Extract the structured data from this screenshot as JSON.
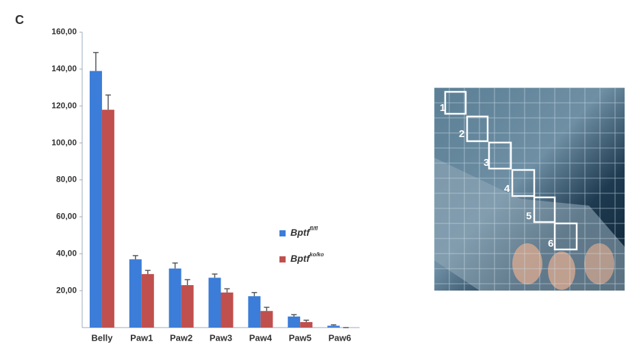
{
  "panel_label": "C",
  "chart_data": {
    "type": "bar",
    "categories": [
      "Belly",
      "Paw1",
      "Paw2",
      "Paw3",
      "Paw4",
      "Paw5",
      "Paw6"
    ],
    "series": [
      {
        "name": "Bptf",
        "superscript": "fl/fl",
        "color": "#3b7dd8",
        "values": [
          139,
          37,
          32,
          27,
          17,
          6,
          1
        ],
        "errors": [
          10,
          2,
          3,
          2,
          2,
          1,
          0.5
        ]
      },
      {
        "name": "Bptf",
        "superscript": "ko/ko",
        "color": "#c0504d",
        "values": [
          118,
          29,
          23,
          19,
          9,
          3,
          0
        ],
        "errors": [
          8,
          2,
          3,
          2,
          2,
          1,
          0
        ]
      }
    ],
    "ylim": [
      0,
      160
    ],
    "yticks": [
      {
        "value": 20,
        "label": "20,00"
      },
      {
        "value": 40,
        "label": "40,00"
      },
      {
        "value": 60,
        "label": "60,00"
      },
      {
        "value": 80,
        "label": "80,00"
      },
      {
        "value": 100,
        "label": "100,00"
      },
      {
        "value": 120,
        "label": "120,00"
      },
      {
        "value": 140,
        "label": "140,00"
      },
      {
        "value": 160,
        "label": "160,00"
      }
    ],
    "legend": "right"
  },
  "image_labels": [
    "1",
    "2",
    "3",
    "4",
    "5",
    "6"
  ]
}
